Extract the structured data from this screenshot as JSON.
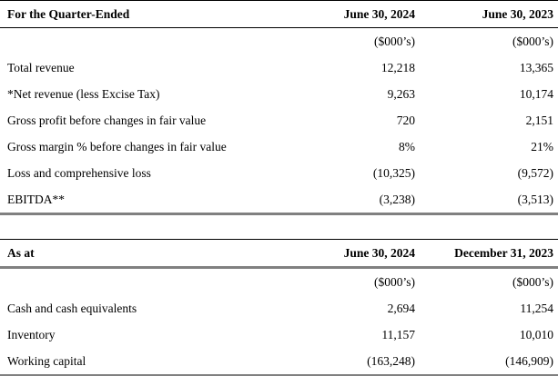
{
  "table1": {
    "header": {
      "label": "For the Quarter-Ended",
      "col1": "June 30, 2024",
      "col2": "June 30, 2023"
    },
    "units": {
      "col1": "($000’s)",
      "col2": "($000’s)"
    },
    "rows": [
      {
        "label": "Total revenue",
        "col1": "12,218",
        "col2": "13,365"
      },
      {
        "label": "*Net revenue (less Excise Tax)",
        "col1": "9,263",
        "col2": "10,174"
      },
      {
        "label": "Gross profit before changes in fair value",
        "col1": "720",
        "col2": "2,151"
      },
      {
        "label": "Gross margin % before changes in fair value",
        "col1": "8%",
        "col2": "21%"
      },
      {
        "label": "Loss and comprehensive loss",
        "col1": "(10,325)",
        "col2": "(9,572)"
      },
      {
        "label": "EBITDA**",
        "col1": "(3,238)",
        "col2": "(3,513)"
      }
    ]
  },
  "table2": {
    "header": {
      "label": "As at",
      "col1": "June 30, 2024",
      "col2": "December 31, 2023"
    },
    "units": {
      "col1": "($000’s)",
      "col2": "($000’s)"
    },
    "rows": [
      {
        "label": "Cash and cash equivalents",
        "col1": "2,694",
        "col2": "11,254"
      },
      {
        "label": "Inventory",
        "col1": "11,157",
        "col2": "10,010"
      },
      {
        "label": "Working capital",
        "col1": "(163,248)",
        "col2": "(146,909)"
      }
    ]
  },
  "colors": {
    "text": "#000000",
    "background": "#ffffff",
    "rule_black": "#000000",
    "rule_gray": "#808080"
  }
}
